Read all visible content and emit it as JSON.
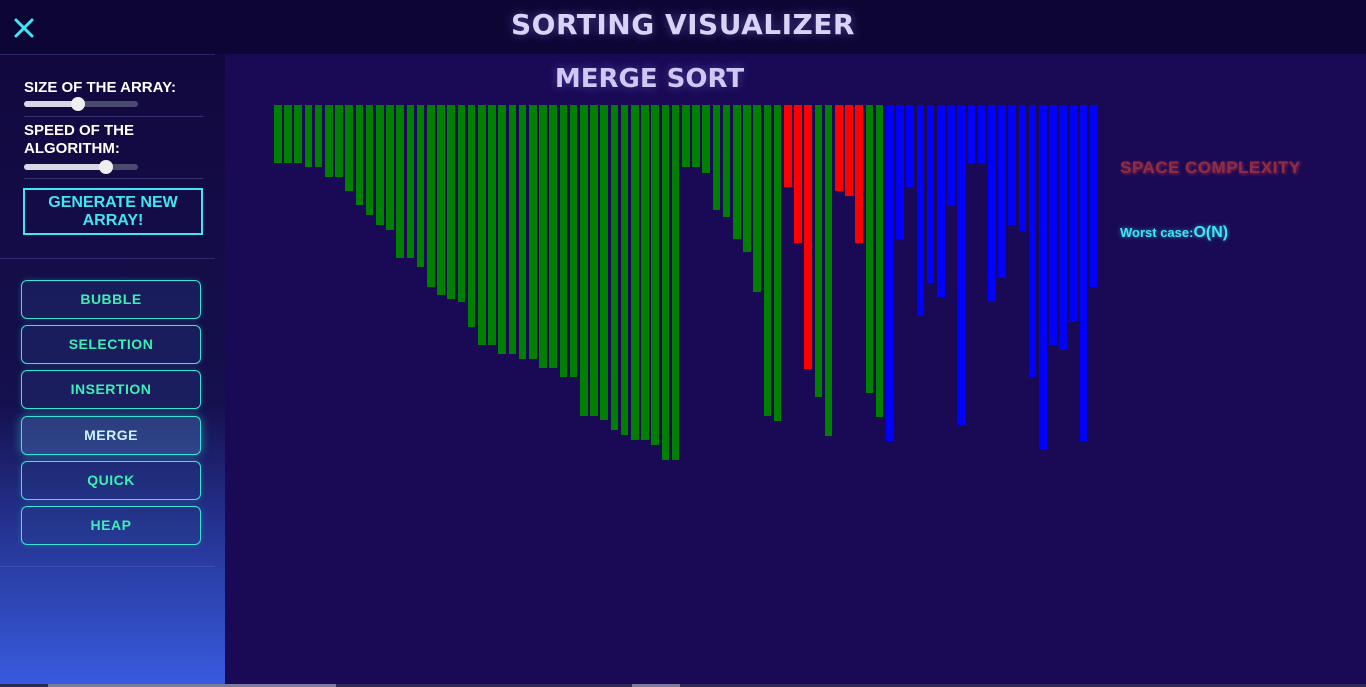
{
  "header": {
    "title": "SORTING VISUALIZER",
    "close_icon": "close-icon"
  },
  "sidebar": {
    "size_label": "SIZE OF THE ARRAY:",
    "size_value": 0.47,
    "speed_label": "SPEED OF THE ALGORITHM:",
    "speed_value": 0.72,
    "generate_label": "GENERATE NEW ARRAY!",
    "algorithms": [
      {
        "label": "BUBBLE"
      },
      {
        "label": "SELECTION"
      },
      {
        "label": "INSERTION"
      },
      {
        "label": "MERGE",
        "active": true
      },
      {
        "label": "QUICK"
      },
      {
        "label": "HEAP"
      }
    ]
  },
  "main": {
    "algorithm_title": "MERGE SORT",
    "complexity_title": "SPACE COMPLEXITY",
    "worst_case_label": "Worst case:",
    "worst_case_value": "O(N)"
  },
  "colors": {
    "sorted": "#008000",
    "comparing": "#ff0000",
    "unsorted": "#0000ff",
    "accent": "#3ee8f2",
    "background": "#1a0a55"
  },
  "bars": {
    "heights": [
      58,
      58,
      58,
      62,
      62,
      72,
      72,
      86,
      100,
      110,
      120,
      125,
      153,
      153,
      162,
      182,
      190,
      194,
      197,
      222,
      240,
      240,
      249,
      249,
      254,
      254,
      263,
      263,
      272,
      272,
      311,
      311,
      315,
      325,
      330,
      335,
      335,
      340,
      355,
      355,
      62,
      62,
      68,
      105,
      112,
      134,
      147,
      187,
      311,
      316,
      82,
      138,
      264,
      292,
      331,
      86,
      91,
      138,
      288,
      312,
      336,
      134,
      82,
      211,
      178,
      192,
      101,
      320,
      58,
      58,
      197,
      173,
      120,
      126,
      272,
      344,
      240,
      245,
      216,
      336,
      182
    ],
    "states": [
      "s",
      "s",
      "s",
      "s",
      "s",
      "s",
      "s",
      "s",
      "s",
      "s",
      "s",
      "s",
      "s",
      "s",
      "s",
      "s",
      "s",
      "s",
      "s",
      "s",
      "s",
      "s",
      "s",
      "s",
      "s",
      "s",
      "s",
      "s",
      "s",
      "s",
      "s",
      "s",
      "s",
      "s",
      "s",
      "s",
      "s",
      "s",
      "s",
      "s",
      "s",
      "s",
      "s",
      "s",
      "s",
      "s",
      "s",
      "s",
      "s",
      "s",
      "c",
      "c",
      "c",
      "s",
      "s",
      "c",
      "c",
      "c",
      "s",
      "s",
      "u",
      "u",
      "u",
      "u",
      "u",
      "u",
      "u",
      "u",
      "u",
      "u",
      "u",
      "u",
      "u",
      "u",
      "u",
      "u",
      "u",
      "u",
      "u",
      "u",
      "u"
    ]
  }
}
